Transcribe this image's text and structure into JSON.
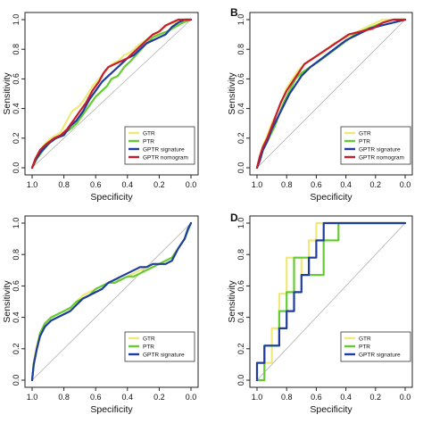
{
  "chart_data": [
    {
      "type": "line",
      "panel_label": "",
      "xlabel": "Specificity",
      "ylabel": "Sensitivity",
      "x_ticks": [
        "1.0",
        "0.8",
        "0.6",
        "0.4",
        "0.2",
        "0.0"
      ],
      "y_ticks": [
        "0.0",
        "0.2",
        "0.4",
        "0.6",
        "0.8",
        "1.0"
      ],
      "xlim": [
        1.0,
        0.0
      ],
      "ylim": [
        0.0,
        1.0
      ],
      "grid": false,
      "diagonal_reference": true,
      "legend_position": "bottom-right",
      "series": [
        {
          "name": "GTR",
          "color": "#f0e878",
          "specificity": [
            1.0,
            0.97,
            0.93,
            0.88,
            0.82,
            0.78,
            0.75,
            0.7,
            0.66,
            0.62,
            0.58,
            0.54,
            0.5,
            0.46,
            0.42,
            0.38,
            0.34,
            0.3,
            0.26,
            0.22,
            0.18,
            0.14,
            0.1,
            0.05,
            0.0
          ],
          "sensitivity": [
            0.0,
            0.08,
            0.15,
            0.2,
            0.24,
            0.32,
            0.38,
            0.42,
            0.48,
            0.55,
            0.6,
            0.65,
            0.7,
            0.72,
            0.76,
            0.78,
            0.82,
            0.85,
            0.88,
            0.9,
            0.94,
            0.97,
            0.98,
            1.0,
            1.0
          ]
        },
        {
          "name": "PTR",
          "color": "#66cc33",
          "specificity": [
            1.0,
            0.97,
            0.93,
            0.88,
            0.82,
            0.76,
            0.72,
            0.68,
            0.64,
            0.6,
            0.56,
            0.53,
            0.5,
            0.46,
            0.42,
            0.38,
            0.33,
            0.28,
            0.24,
            0.2,
            0.15,
            0.1,
            0.05,
            0.0
          ],
          "sensitivity": [
            0.0,
            0.06,
            0.12,
            0.18,
            0.22,
            0.26,
            0.3,
            0.36,
            0.42,
            0.48,
            0.52,
            0.55,
            0.6,
            0.62,
            0.68,
            0.72,
            0.78,
            0.84,
            0.88,
            0.9,
            0.92,
            0.95,
            0.98,
            1.0
          ]
        },
        {
          "name": "GPTR signature",
          "color": "#1f3c9e",
          "specificity": [
            1.0,
            0.98,
            0.95,
            0.9,
            0.85,
            0.8,
            0.76,
            0.72,
            0.68,
            0.64,
            0.6,
            0.56,
            0.52,
            0.48,
            0.44,
            0.4,
            0.36,
            0.32,
            0.28,
            0.24,
            0.2,
            0.16,
            0.12,
            0.08,
            0.04,
            0.0
          ],
          "sensitivity": [
            0.0,
            0.05,
            0.1,
            0.16,
            0.2,
            0.22,
            0.28,
            0.32,
            0.38,
            0.46,
            0.52,
            0.58,
            0.62,
            0.66,
            0.7,
            0.74,
            0.76,
            0.8,
            0.84,
            0.86,
            0.88,
            0.9,
            0.95,
            0.98,
            1.0,
            1.0
          ]
        },
        {
          "name": "GPTR nomogram",
          "color": "#c41e2e",
          "specificity": [
            1.0,
            0.98,
            0.95,
            0.91,
            0.86,
            0.82,
            0.78,
            0.74,
            0.7,
            0.66,
            0.62,
            0.58,
            0.55,
            0.52,
            0.48,
            0.44,
            0.4,
            0.36,
            0.32,
            0.28,
            0.24,
            0.2,
            0.16,
            0.12,
            0.08,
            0.04,
            0.0
          ],
          "sensitivity": [
            0.0,
            0.06,
            0.12,
            0.16,
            0.2,
            0.22,
            0.26,
            0.32,
            0.38,
            0.44,
            0.52,
            0.58,
            0.64,
            0.68,
            0.7,
            0.72,
            0.74,
            0.78,
            0.82,
            0.86,
            0.9,
            0.92,
            0.96,
            0.98,
            1.0,
            1.0,
            1.0
          ]
        }
      ]
    },
    {
      "type": "line",
      "panel_label": "B",
      "xlabel": "Specificity",
      "ylabel": "Sensitivity",
      "x_ticks": [
        "1.0",
        "0.8",
        "0.6",
        "0.4",
        "0.2",
        "0.0"
      ],
      "y_ticks": [
        "0.0",
        "0.2",
        "0.4",
        "0.6",
        "0.8",
        "1.0"
      ],
      "xlim": [
        1.0,
        0.0
      ],
      "ylim": [
        0.0,
        1.0
      ],
      "grid": false,
      "diagonal_reference": true,
      "legend_position": "bottom-right",
      "series": [
        {
          "name": "GTR",
          "color": "#f0e878",
          "specificity": [
            1.0,
            0.98,
            0.96,
            0.93,
            0.9,
            0.86,
            0.83,
            0.8,
            0.76,
            0.72,
            0.68,
            0.62,
            0.55,
            0.48,
            0.4,
            0.32,
            0.24,
            0.15,
            0.0
          ],
          "sensitivity": [
            0.0,
            0.08,
            0.15,
            0.22,
            0.3,
            0.38,
            0.46,
            0.54,
            0.6,
            0.66,
            0.7,
            0.74,
            0.78,
            0.84,
            0.88,
            0.92,
            0.96,
            1.0,
            1.0
          ]
        },
        {
          "name": "PTR",
          "color": "#66cc33",
          "specificity": [
            1.0,
            0.98,
            0.96,
            0.92,
            0.88,
            0.85,
            0.82,
            0.78,
            0.74,
            0.7,
            0.64,
            0.58,
            0.5,
            0.42,
            0.34,
            0.25,
            0.15,
            0.08,
            0.0
          ],
          "sensitivity": [
            0.0,
            0.06,
            0.12,
            0.2,
            0.28,
            0.36,
            0.44,
            0.52,
            0.6,
            0.64,
            0.68,
            0.72,
            0.78,
            0.84,
            0.9,
            0.94,
            0.98,
            1.0,
            1.0
          ]
        },
        {
          "name": "GPTR signature",
          "color": "#1f3c9e",
          "specificity": [
            1.0,
            0.98,
            0.96,
            0.93,
            0.9,
            0.86,
            0.82,
            0.78,
            0.74,
            0.7,
            0.64,
            0.56,
            0.48,
            0.4,
            0.32,
            0.24,
            0.16,
            0.08,
            0.0
          ],
          "sensitivity": [
            0.0,
            0.05,
            0.12,
            0.18,
            0.26,
            0.34,
            0.42,
            0.5,
            0.56,
            0.62,
            0.68,
            0.74,
            0.8,
            0.86,
            0.9,
            0.94,
            0.96,
            0.98,
            1.0
          ]
        },
        {
          "name": "GPTR nomogram",
          "color": "#c41e2e",
          "specificity": [
            1.0,
            0.98,
            0.96,
            0.93,
            0.9,
            0.87,
            0.84,
            0.8,
            0.76,
            0.72,
            0.68,
            0.62,
            0.56,
            0.5,
            0.44,
            0.38,
            0.3,
            0.22,
            0.15,
            0.08,
            0.0
          ],
          "sensitivity": [
            0.0,
            0.08,
            0.14,
            0.2,
            0.28,
            0.36,
            0.44,
            0.52,
            0.58,
            0.64,
            0.7,
            0.74,
            0.78,
            0.82,
            0.86,
            0.9,
            0.92,
            0.94,
            0.98,
            1.0,
            1.0
          ]
        }
      ]
    },
    {
      "type": "line",
      "panel_label": "",
      "xlabel": "Specificity",
      "ylabel": "Sensitivity",
      "x_ticks": [
        "1.0",
        "0.8",
        "0.6",
        "0.4",
        "0.2",
        "0.0"
      ],
      "y_ticks": [
        "0.0",
        "0.2",
        "0.4",
        "0.6",
        "0.8",
        "1.0"
      ],
      "xlim": [
        1.0,
        0.0
      ],
      "ylim": [
        0.0,
        1.0
      ],
      "grid": false,
      "diagonal_reference": true,
      "legend_position": "bottom-right",
      "series": [
        {
          "name": "GTR",
          "color": "#f0e878",
          "specificity": [
            1.0,
            0.99,
            0.97,
            0.95,
            0.92,
            0.88,
            0.84,
            0.8,
            0.76,
            0.72,
            0.68,
            0.64,
            0.6,
            0.56,
            0.52,
            0.48,
            0.44,
            0.4,
            0.36,
            0.32,
            0.28,
            0.24,
            0.2,
            0.16,
            0.12,
            0.08,
            0.04,
            0.02,
            0.0
          ],
          "sensitivity": [
            0.0,
            0.12,
            0.22,
            0.3,
            0.36,
            0.4,
            0.42,
            0.44,
            0.46,
            0.5,
            0.54,
            0.56,
            0.58,
            0.6,
            0.62,
            0.64,
            0.64,
            0.66,
            0.68,
            0.7,
            0.72,
            0.72,
            0.74,
            0.76,
            0.78,
            0.84,
            0.9,
            0.95,
            1.0
          ]
        },
        {
          "name": "PTR",
          "color": "#66cc33",
          "specificity": [
            1.0,
            0.99,
            0.97,
            0.95,
            0.92,
            0.88,
            0.84,
            0.8,
            0.76,
            0.72,
            0.68,
            0.64,
            0.6,
            0.56,
            0.52,
            0.48,
            0.44,
            0.4,
            0.36,
            0.32,
            0.28,
            0.24,
            0.2,
            0.16,
            0.12,
            0.08,
            0.04,
            0.02,
            0.0
          ],
          "sensitivity": [
            0.0,
            0.1,
            0.2,
            0.3,
            0.36,
            0.4,
            0.42,
            0.44,
            0.46,
            0.5,
            0.52,
            0.54,
            0.58,
            0.6,
            0.62,
            0.62,
            0.64,
            0.66,
            0.66,
            0.68,
            0.7,
            0.72,
            0.74,
            0.76,
            0.78,
            0.84,
            0.9,
            0.95,
            1.0
          ]
        },
        {
          "name": "GPTR signature",
          "color": "#1f3c9e",
          "specificity": [
            1.0,
            0.99,
            0.97,
            0.95,
            0.92,
            0.88,
            0.84,
            0.8,
            0.76,
            0.72,
            0.68,
            0.64,
            0.6,
            0.56,
            0.52,
            0.48,
            0.44,
            0.4,
            0.36,
            0.32,
            0.28,
            0.24,
            0.2,
            0.16,
            0.12,
            0.08,
            0.04,
            0.02,
            0.0
          ],
          "sensitivity": [
            0.0,
            0.1,
            0.2,
            0.28,
            0.34,
            0.38,
            0.4,
            0.42,
            0.44,
            0.48,
            0.52,
            0.54,
            0.56,
            0.58,
            0.62,
            0.64,
            0.66,
            0.68,
            0.7,
            0.72,
            0.72,
            0.74,
            0.74,
            0.74,
            0.76,
            0.84,
            0.9,
            0.96,
            1.0
          ]
        }
      ]
    },
    {
      "type": "line",
      "panel_label": "D",
      "xlabel": "Specificity",
      "ylabel": "Sensitivity",
      "x_ticks": [
        "1.0",
        "0.8",
        "0.6",
        "0.4",
        "0.2",
        "0.0"
      ],
      "y_ticks": [
        "0.0",
        "0.2",
        "0.4",
        "0.6",
        "0.8",
        "1.0"
      ],
      "xlim": [
        1.0,
        0.0
      ],
      "ylim": [
        0.0,
        1.0
      ],
      "grid": false,
      "diagonal_reference": true,
      "legend_position": "bottom-right",
      "series": [
        {
          "name": "GTR",
          "color": "#f0e878",
          "specificity": [
            1.0,
            0.95,
            0.95,
            0.9,
            0.9,
            0.85,
            0.85,
            0.8,
            0.8,
            0.7,
            0.7,
            0.65,
            0.65,
            0.6,
            0.6,
            0.0
          ],
          "sensitivity": [
            0.0,
            0.0,
            0.11,
            0.11,
            0.33,
            0.33,
            0.55,
            0.55,
            0.78,
            0.78,
            0.67,
            0.67,
            0.89,
            0.89,
            1.0,
            1.0
          ]
        },
        {
          "name": "PTR",
          "color": "#66cc33",
          "specificity": [
            1.0,
            0.95,
            0.95,
            0.85,
            0.85,
            0.8,
            0.8,
            0.75,
            0.75,
            0.65,
            0.65,
            0.55,
            0.55,
            0.45,
            0.45,
            0.35,
            0.0
          ],
          "sensitivity": [
            0.0,
            0.0,
            0.22,
            0.22,
            0.44,
            0.44,
            0.56,
            0.56,
            0.78,
            0.78,
            0.67,
            0.67,
            0.89,
            0.89,
            1.0,
            1.0,
            1.0
          ]
        },
        {
          "name": "GPTR signature",
          "color": "#1f3c9e",
          "specificity": [
            1.0,
            1.0,
            0.95,
            0.95,
            0.85,
            0.85,
            0.8,
            0.8,
            0.75,
            0.75,
            0.7,
            0.7,
            0.65,
            0.65,
            0.6,
            0.6,
            0.55,
            0.55,
            0.0
          ],
          "sensitivity": [
            0.0,
            0.11,
            0.11,
            0.22,
            0.22,
            0.33,
            0.33,
            0.44,
            0.44,
            0.56,
            0.56,
            0.67,
            0.67,
            0.78,
            0.78,
            0.89,
            0.89,
            1.0,
            1.0
          ]
        }
      ]
    }
  ]
}
